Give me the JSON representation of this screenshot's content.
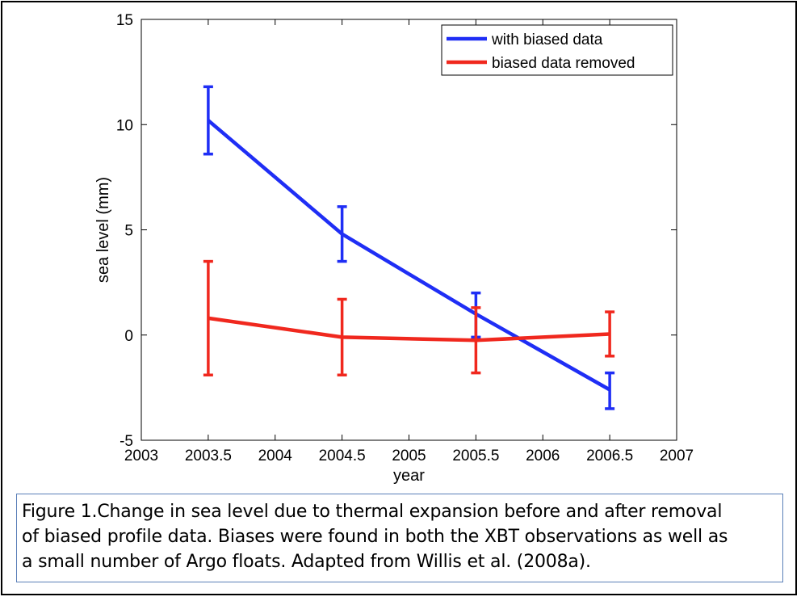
{
  "chart_data": {
    "type": "line",
    "xlabel": "year",
    "ylabel": "sea level (mm)",
    "xlim": [
      2003,
      2007
    ],
    "ylim": [
      -5,
      15
    ],
    "xticks": [
      "2003",
      "2003.5",
      "2004",
      "2004.5",
      "2005",
      "2005.5",
      "2006",
      "2006.5",
      "2007"
    ],
    "yticks": [
      "-5",
      "0",
      "5",
      "10",
      "15"
    ],
    "legend_position": "top-right",
    "series": [
      {
        "name": "with biased data",
        "color": "#1f2ef5",
        "x": [
          2003.5,
          2004.5,
          2005.5,
          2006.5
        ],
        "y": [
          10.2,
          4.8,
          1.0,
          -2.6
        ],
        "err_low": [
          8.6,
          3.5,
          -0.1,
          -3.5
        ],
        "err_high": [
          11.8,
          6.1,
          2.0,
          -1.8
        ]
      },
      {
        "name": "biased data removed",
        "color": "#f0281e",
        "x": [
          2003.5,
          2004.5,
          2005.5,
          2006.5
        ],
        "y": [
          0.8,
          -0.1,
          -0.25,
          0.05
        ],
        "err_low": [
          -1.9,
          -1.9,
          -1.8,
          -1.0
        ],
        "err_high": [
          3.5,
          1.7,
          1.3,
          1.1
        ]
      }
    ]
  },
  "caption": {
    "line1": "Figure 1.Change in sea level due to thermal expansion before and after removal",
    "line2": "of biased profile data.  Biases were found in both the XBT observations as well as",
    "line3": "a small number of Argo floats.  Adapted from Willis et al. (2008a)."
  }
}
